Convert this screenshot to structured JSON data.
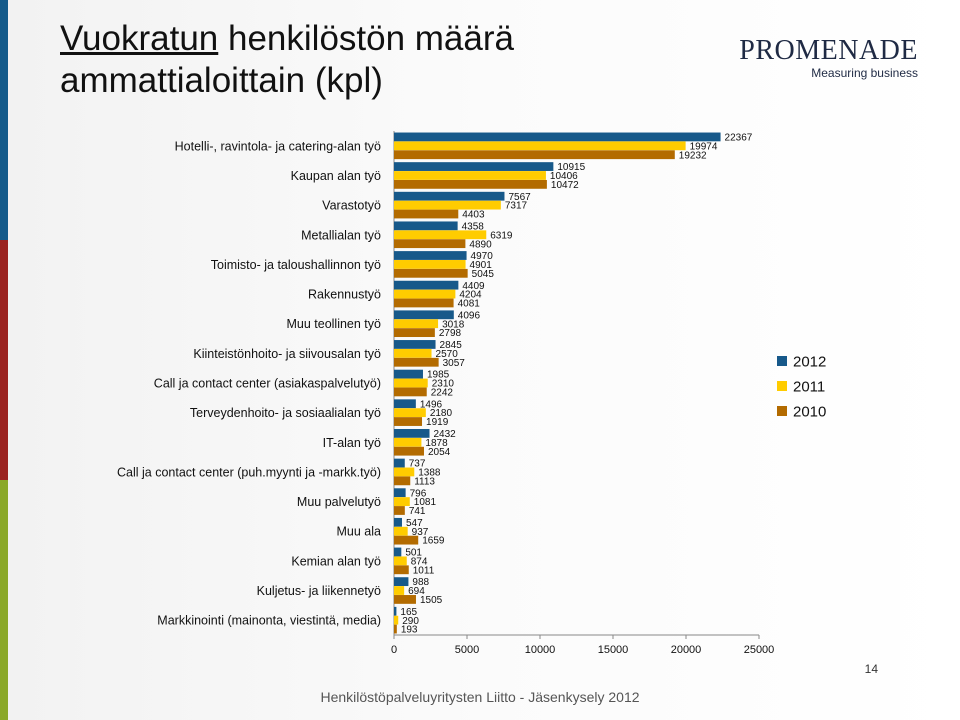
{
  "header": {
    "title_line1_underlined": "Vuokratun",
    "title_line1_rest": " henkilöstön määrä",
    "title_line2": "ammattialoittain (kpl)"
  },
  "logo": {
    "name": "PROMENADE",
    "tagline": "Measuring business"
  },
  "footer": {
    "text": "Henkilöstöpalveluyritysten Liitto - Jäsenkysely 2012",
    "page_number": "14"
  },
  "chart_data": {
    "type": "bar",
    "orientation": "horizontal",
    "title": "",
    "xlabel": "",
    "ylabel": "",
    "xlim": [
      0,
      25000
    ],
    "xticks": [
      "0",
      "5000",
      "10000",
      "15000",
      "20000",
      "25000"
    ],
    "tick_values": [
      0,
      5000,
      10000,
      15000,
      20000,
      25000
    ],
    "legend_position": "right",
    "categories": [
      "Hotelli-, ravintola- ja catering-alan työ",
      "Kaupan alan työ",
      "Varastotyö",
      "Metallialan työ",
      "Toimisto- ja taloushallinnon työ",
      "Rakennustyö",
      "Muu teollinen työ",
      "Kiinteistönhoito- ja siivousalan työ",
      "Call ja contact center (asiakaspalvelutyö)",
      "Terveydenhoito- ja sosiaalialan työ",
      "IT-alan työ",
      "Call ja contact center (puh.myynti ja -markk.työ)",
      "Muu palvelutyö",
      "Muu ala",
      "Kemian alan työ",
      "Kuljetus- ja liikennetyö",
      "Markkinointi (mainonta, viestintä, media)"
    ],
    "series": [
      {
        "name": "2012",
        "color": "#17598a",
        "values": [
          22367,
          10915,
          7567,
          4358,
          4970,
          4409,
          4096,
          2845,
          1985,
          1496,
          2432,
          737,
          796,
          547,
          501,
          988,
          165
        ]
      },
      {
        "name": "2011",
        "color": "#ffcc00",
        "values": [
          19974,
          10406,
          7317,
          6319,
          4901,
          4204,
          3018,
          2570,
          2310,
          2180,
          1878,
          1388,
          1081,
          937,
          874,
          694,
          290
        ]
      },
      {
        "name": "2010",
        "color": "#b36b00",
        "values": [
          19232,
          10472,
          4403,
          4890,
          5045,
          4081,
          2798,
          3057,
          2242,
          1919,
          2054,
          1113,
          741,
          1659,
          1011,
          1505,
          193
        ]
      }
    ]
  }
}
